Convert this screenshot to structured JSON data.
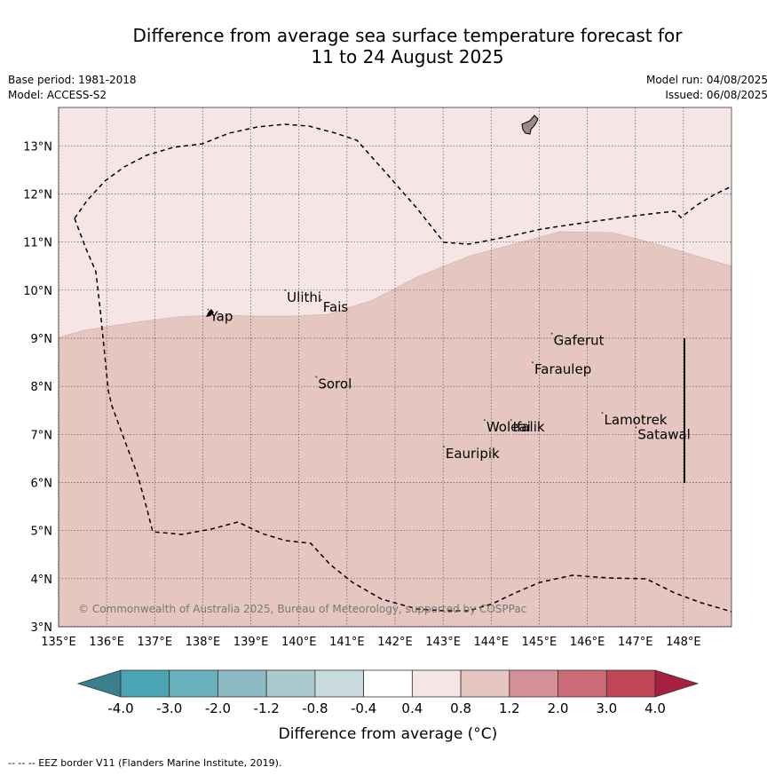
{
  "title": {
    "line1": "Difference from average sea surface temperature forecast for",
    "line2": "11 to 24 August 2025"
  },
  "meta": {
    "base_period": "Base period: 1981-2018",
    "model": "Model: ACCESS-S2",
    "model_run": "Model run: 04/08/2025",
    "issued": "Issued: 06/08/2025"
  },
  "map": {
    "lon_range": [
      135,
      149
    ],
    "lat_range": [
      3,
      13.8
    ],
    "lon_ticks": [
      "135°E",
      "136°E",
      "137°E",
      "138°E",
      "139°E",
      "140°E",
      "141°E",
      "142°E",
      "143°E",
      "144°E",
      "145°E",
      "146°E",
      "147°E",
      "148°E"
    ],
    "lat_ticks": [
      "13°N",
      "12°N",
      "11°N",
      "10°N",
      "9°N",
      "8°N",
      "7°N",
      "6°N",
      "5°N",
      "4°N",
      "3°N"
    ],
    "copyright": "© Commonwealth of Australia 2025, Bureau of Meteorology, supported by COSPPac",
    "places": [
      {
        "name": "Ulithi",
        "lon": 139.75,
        "lat": 9.85
      },
      {
        "name": "Fais",
        "lon": 140.5,
        "lat": 9.65
      },
      {
        "name": "Yap",
        "lon": 138.15,
        "lat": 9.45
      },
      {
        "name": "Gaferut",
        "lon": 145.3,
        "lat": 8.95
      },
      {
        "name": "Faraulep",
        "lon": 144.9,
        "lat": 8.35
      },
      {
        "name": "Sorol",
        "lon": 140.4,
        "lat": 8.05
      },
      {
        "name": "Woleai",
        "lon": 143.9,
        "lat": 7.15
      },
      {
        "name": "Ifalik",
        "lon": 144.45,
        "lat": 7.15
      },
      {
        "name": "Lamotrek",
        "lon": 146.35,
        "lat": 7.3
      },
      {
        "name": "Satawal",
        "lon": 147.05,
        "lat": 7.0
      },
      {
        "name": "Eauripik",
        "lon": 143.05,
        "lat": 6.6
      }
    ]
  },
  "colorbar": {
    "labels": [
      "-4.0",
      "-3.0",
      "-2.0",
      "-1.2",
      "-0.8",
      "-0.4",
      "0.4",
      "0.8",
      "1.2",
      "2.0",
      "3.0",
      "4.0"
    ],
    "colors": [
      "#3a7f8d",
      "#4aa4b4",
      "#6aafbd",
      "#8cbac5",
      "#abc9cf",
      "#c9dadd",
      "#ffffff",
      "#f5e6e5",
      "#e6c6c1",
      "#d58f96",
      "#cc6b78",
      "#c04656",
      "#a82040"
    ],
    "title": "Difference from average (°C)"
  },
  "footer": "--  --  -- EEZ border V11 (Flanders Marine Institute, 2019)."
}
